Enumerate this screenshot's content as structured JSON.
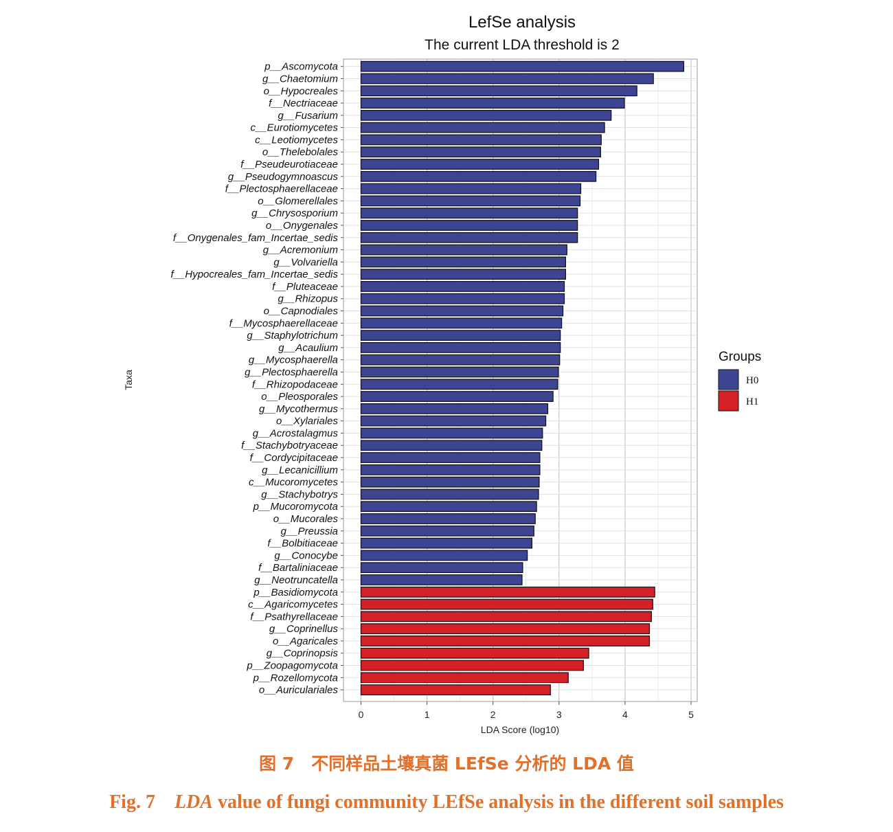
{
  "chart_data": {
    "type": "bar",
    "orientation": "horizontal",
    "title": "LefSe analysis",
    "subtitle": "The current LDA threshold is 2",
    "xlabel": "LDA Score (log10)",
    "ylabel": "Taxa",
    "xlim": [
      0,
      5
    ],
    "xticks": [
      0,
      1,
      2,
      3,
      4,
      5
    ],
    "grid": true,
    "legend": {
      "title": "Groups",
      "position": "right",
      "entries": [
        {
          "name": "H0",
          "color": "#3d4491"
        },
        {
          "name": "H1",
          "color": "#d42127"
        }
      ]
    },
    "categories": [
      "p__Ascomycota",
      "g__Chaetomium",
      "o__Hypocreales",
      "f__Nectriaceae",
      "g__Fusarium",
      "c__Eurotiomycetes",
      "c__Leotiomycetes",
      "o__Thelebolales",
      "f__Pseudeurotiaceae",
      "g__Pseudogymnoascus",
      "f__Plectosphaerellaceae",
      "o__Glomerellales",
      "g__Chrysosporium",
      "o__Onygenales",
      "f__Onygenales_fam_Incertae_sedis",
      "g__Acremonium",
      "g__Volvariella",
      "f__Hypocreales_fam_Incertae_sedis",
      "f__Pluteaceae",
      "g__Rhizopus",
      "o__Capnodiales",
      "f__Mycosphaerellaceae",
      "g__Staphylotrichum",
      "g__Acaulium",
      "g__Mycosphaerella",
      "g__Plectosphaerella",
      "f__Rhizopodaceae",
      "o__Pleosporales",
      "g__Mycothermus",
      "o__Xylariales",
      "g__Acrostalagmus",
      "f__Stachybotryaceae",
      "f__Cordycipitaceae",
      "g__Lecanicillium",
      "c__Mucoromycetes",
      "g__Stachybotrys",
      "p__Mucoromycota",
      "o__Mucorales",
      "g__Preussia",
      "f__Bolbitiaceae",
      "g__Conocybe",
      "f__Bartaliniaceae",
      "g__Neotruncatella",
      "p__Basidiomycota",
      "c__Agaricomycetes",
      "f__Psathyrellaceae",
      "g__Coprinellus",
      "o__Agaricales",
      "g__Coprinopsis",
      "p__Zoopagomycota",
      "p__Rozellomycota",
      "o__Auriculariales"
    ],
    "values": [
      4.89,
      4.43,
      4.18,
      3.99,
      3.79,
      3.69,
      3.64,
      3.63,
      3.6,
      3.56,
      3.33,
      3.32,
      3.28,
      3.28,
      3.28,
      3.12,
      3.1,
      3.1,
      3.08,
      3.08,
      3.06,
      3.04,
      3.02,
      3.02,
      3.01,
      2.99,
      2.98,
      2.91,
      2.83,
      2.8,
      2.75,
      2.74,
      2.71,
      2.71,
      2.7,
      2.69,
      2.66,
      2.64,
      2.62,
      2.59,
      2.52,
      2.45,
      2.44,
      4.45,
      4.42,
      4.4,
      4.37,
      4.37,
      3.45,
      3.37,
      3.14,
      2.87
    ],
    "groups": [
      "H0",
      "H0",
      "H0",
      "H0",
      "H0",
      "H0",
      "H0",
      "H0",
      "H0",
      "H0",
      "H0",
      "H0",
      "H0",
      "H0",
      "H0",
      "H0",
      "H0",
      "H0",
      "H0",
      "H0",
      "H0",
      "H0",
      "H0",
      "H0",
      "H0",
      "H0",
      "H0",
      "H0",
      "H0",
      "H0",
      "H0",
      "H0",
      "H0",
      "H0",
      "H0",
      "H0",
      "H0",
      "H0",
      "H0",
      "H0",
      "H0",
      "H0",
      "H0",
      "H1",
      "H1",
      "H1",
      "H1",
      "H1",
      "H1",
      "H1",
      "H1",
      "H1"
    ]
  },
  "caption": {
    "cn": "图 7　不同样品土壤真菌 LEfSe 分析的 LDA 值",
    "en_prefix": "Fig. 7　",
    "en_lda": "LDA",
    "en_rest": " value of fungi community LEfSe analysis in the different soil samples"
  }
}
